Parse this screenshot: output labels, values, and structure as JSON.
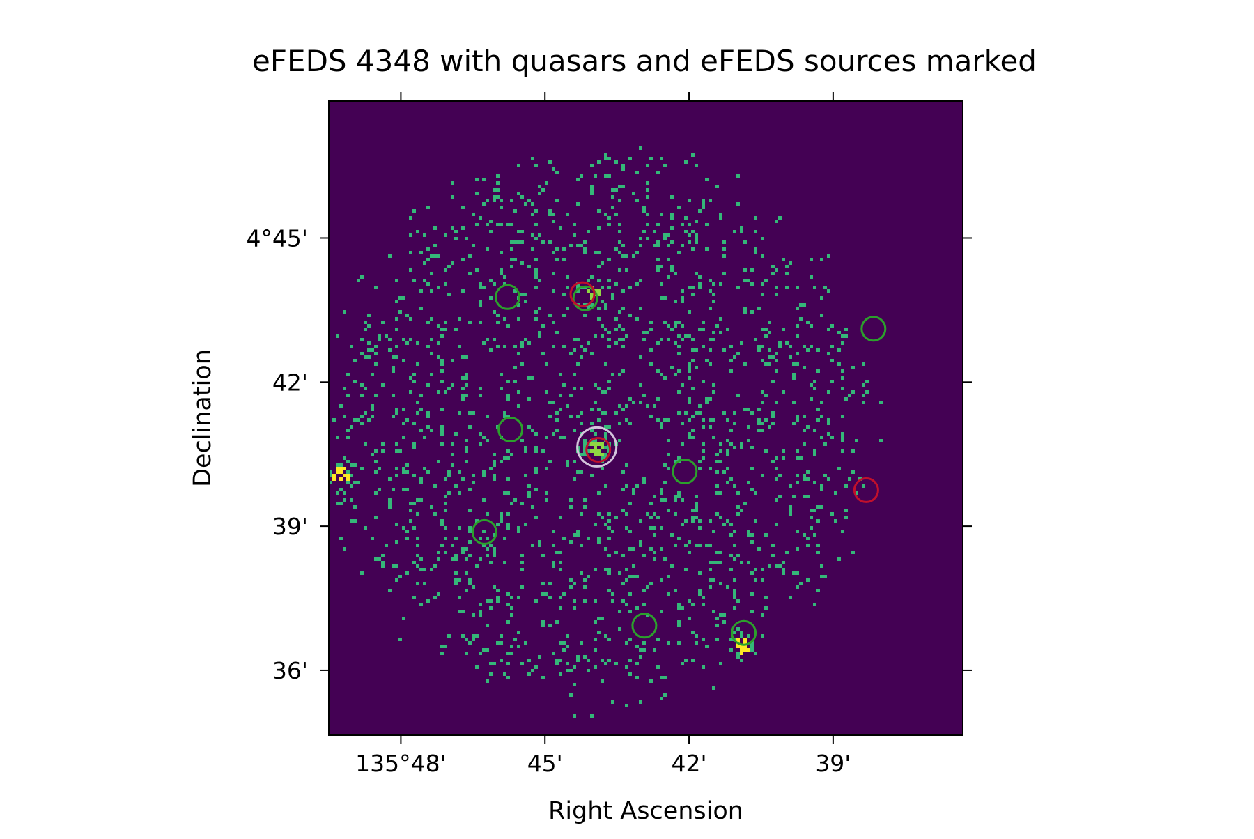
{
  "chart_data": {
    "type": "heatmap",
    "title": "eFEDS 4348 with quasars and eFEDS sources marked",
    "xlabel": "Right Ascension",
    "ylabel": "Declination",
    "xunit": "arcmin",
    "xlim": [
      135.825,
      135.605
    ],
    "ylim": [
      4.5775,
      4.7975
    ],
    "x_ticks": [
      {
        "value": 135.8,
        "label": "135°48'"
      },
      {
        "value": 135.75,
        "label": "45'"
      },
      {
        "value": 135.7,
        "label": "42'"
      },
      {
        "value": 135.65,
        "label": "39'"
      }
    ],
    "y_ticks": [
      {
        "value": 4.75,
        "label": "4°45'"
      },
      {
        "value": 4.7,
        "label": "42'"
      },
      {
        "value": 4.65,
        "label": "39'"
      },
      {
        "value": 4.6,
        "label": "36'"
      }
    ],
    "colormap": "viridis",
    "background_color": "#440154",
    "count_colors": [
      "#35b779",
      "#90d743",
      "#fde725"
    ],
    "field_center": {
      "ra": 135.732,
      "dec": 4.685
    },
    "field_radius": 0.1,
    "bright_sources": [
      {
        "ra": 135.821,
        "dec": 4.6675,
        "strength": 3
      },
      {
        "ra": 135.6815,
        "dec": 4.6085,
        "strength": 3
      },
      {
        "ra": 135.733,
        "dec": 4.7305,
        "strength": 2
      },
      {
        "ra": 135.732,
        "dec": 4.6765,
        "strength": 2
      }
    ],
    "series": [
      {
        "marker": "circle",
        "color": "#2ca02c",
        "points": [
          {
            "ra": 135.763,
            "dec": 4.7295
          },
          {
            "ra": 135.736,
            "dec": 4.729
          },
          {
            "ra": 135.636,
            "dec": 4.7185
          },
          {
            "ra": 135.762,
            "dec": 4.6835
          },
          {
            "ra": 135.7015,
            "dec": 4.669
          },
          {
            "ra": 135.771,
            "dec": 4.648
          },
          {
            "ra": 135.7155,
            "dec": 4.6155
          },
          {
            "ra": 135.681,
            "dec": 4.613
          }
        ]
      },
      {
        "marker": "circle",
        "color": "#c0102c",
        "points": [
          {
            "ra": 135.737,
            "dec": 4.7305
          },
          {
            "ra": 135.7315,
            "dec": 4.6765
          },
          {
            "ra": 135.6385,
            "dec": 4.6625
          }
        ]
      },
      {
        "marker": "circle",
        "color": "#d4c4dc",
        "points": [
          {
            "ra": 135.732,
            "dec": 4.6775
          }
        ]
      }
    ]
  }
}
